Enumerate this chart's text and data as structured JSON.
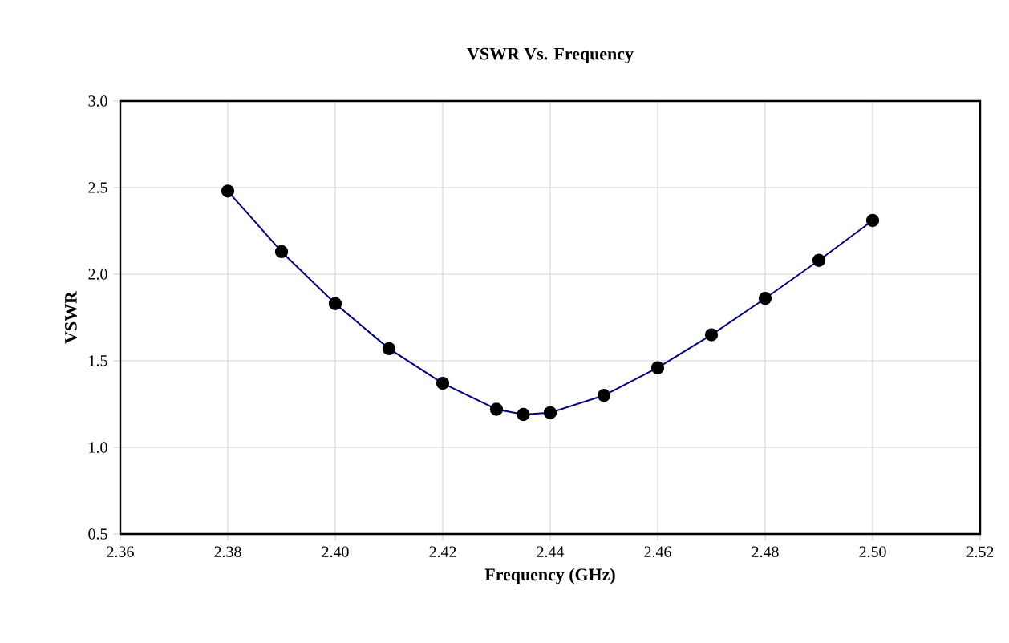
{
  "chart_data": {
    "type": "line",
    "title": "VSWR Vs. Frequency",
    "xlabel": "Frequency (GHz)",
    "ylabel": "VSWR",
    "x": [
      2.38,
      2.39,
      2.4,
      2.41,
      2.42,
      2.43,
      2.435,
      2.44,
      2.45,
      2.46,
      2.47,
      2.48,
      2.49,
      2.5
    ],
    "series": [
      {
        "color": "#000080",
        "values": [
          2.48,
          2.13,
          1.83,
          1.57,
          1.37,
          1.22,
          1.19,
          1.2,
          1.3,
          1.46,
          1.65,
          1.86,
          2.08,
          2.31
        ]
      }
    ],
    "xlim": [
      2.36,
      2.52
    ],
    "xticks": [
      {
        "value": 2.36,
        "label": "2.36"
      },
      {
        "value": 2.38,
        "label": "2.38"
      },
      {
        "value": 2.4,
        "label": "2.40"
      },
      {
        "value": 2.42,
        "label": "2.42"
      },
      {
        "value": 2.44,
        "label": "2.44"
      },
      {
        "value": 2.46,
        "label": "2.46"
      },
      {
        "value": 2.48,
        "label": "2.48"
      },
      {
        "value": 2.5,
        "label": "2.50"
      },
      {
        "value": 2.52,
        "label": "2.52"
      }
    ],
    "ylim": [
      0.5,
      3.0
    ],
    "yticks": [
      {
        "value": 0.5,
        "label": "0.5"
      },
      {
        "value": 1.0,
        "label": "1.0"
      },
      {
        "value": 1.5,
        "label": "1.5"
      },
      {
        "value": 2.0,
        "label": "2.0"
      },
      {
        "value": 2.5,
        "label": "2.5"
      },
      {
        "value": 3.0,
        "label": "3.0"
      }
    ],
    "grid": true,
    "marker": "circle",
    "line_style": "solid"
  }
}
